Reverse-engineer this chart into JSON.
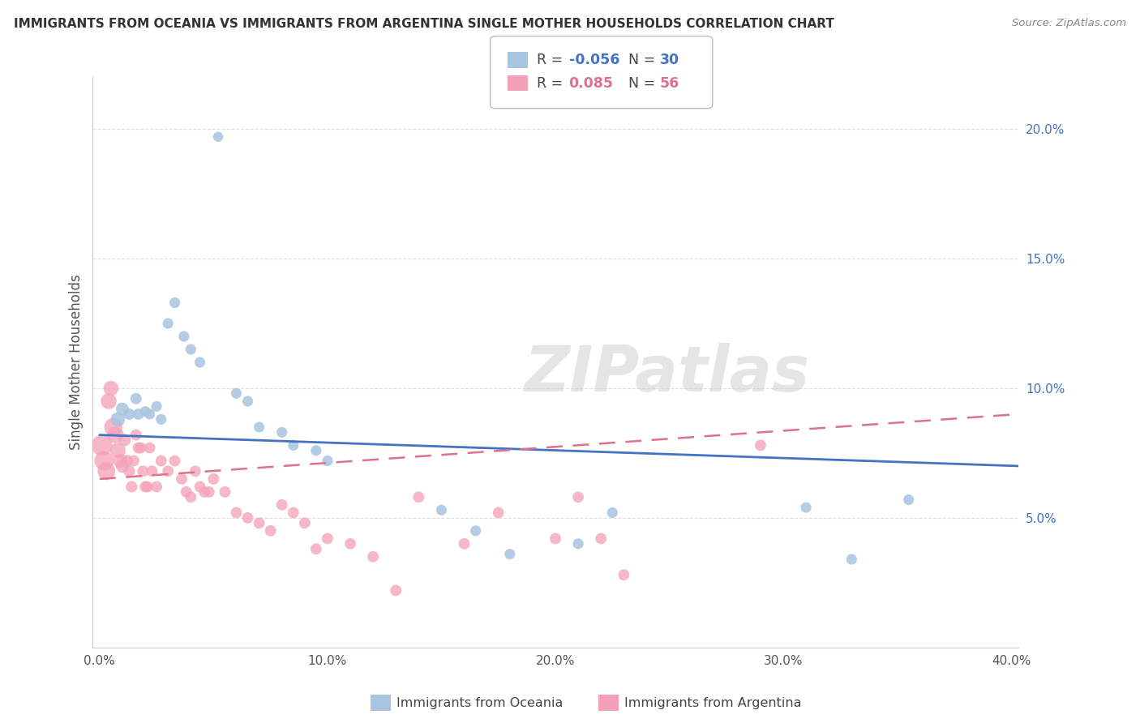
{
  "title": "IMMIGRANTS FROM OCEANIA VS IMMIGRANTS FROM ARGENTINA SINGLE MOTHER HOUSEHOLDS CORRELATION CHART",
  "source": "Source: ZipAtlas.com",
  "ylabel": "Single Mother Households",
  "xlim": [
    -0.003,
    0.403
  ],
  "ylim": [
    0.0,
    0.22
  ],
  "xticks": [
    0.0,
    0.1,
    0.2,
    0.3,
    0.4
  ],
  "xtick_labels": [
    "0.0%",
    "10.0%",
    "20.0%",
    "30.0%",
    "40.0%"
  ],
  "yticks_right": [
    0.05,
    0.1,
    0.15,
    0.2
  ],
  "ytick_labels_right": [
    "5.0%",
    "10.0%",
    "15.0%",
    "20.0%"
  ],
  "color_oceania": "#a8c4e0",
  "color_argentina": "#f4a0b8",
  "color_trend_oceania": "#4472c4",
  "color_trend_argentina": "#e07090",
  "background_color": "#ffffff",
  "grid_color": "#e0e0e0",
  "oceania_x": [
    0.052,
    0.008,
    0.01,
    0.013,
    0.016,
    0.017,
    0.02,
    0.022,
    0.025,
    0.027,
    0.03,
    0.033,
    0.037,
    0.04,
    0.044,
    0.06,
    0.065,
    0.07,
    0.08,
    0.085,
    0.095,
    0.1,
    0.15,
    0.165,
    0.18,
    0.21,
    0.225,
    0.31,
    0.33,
    0.355
  ],
  "oceania_y": [
    0.197,
    0.088,
    0.092,
    0.09,
    0.096,
    0.09,
    0.091,
    0.09,
    0.093,
    0.088,
    0.125,
    0.133,
    0.12,
    0.115,
    0.11,
    0.098,
    0.095,
    0.085,
    0.083,
    0.078,
    0.076,
    0.072,
    0.053,
    0.045,
    0.036,
    0.04,
    0.052,
    0.054,
    0.034,
    0.057
  ],
  "oceania_sizes": [
    80,
    160,
    130,
    100,
    100,
    100,
    90,
    90,
    90,
    90,
    90,
    90,
    90,
    90,
    90,
    90,
    90,
    90,
    90,
    90,
    90,
    90,
    90,
    90,
    90,
    90,
    90,
    90,
    90,
    90
  ],
  "argentina_x": [
    0.001,
    0.002,
    0.003,
    0.004,
    0.005,
    0.006,
    0.007,
    0.008,
    0.009,
    0.01,
    0.011,
    0.012,
    0.013,
    0.014,
    0.015,
    0.016,
    0.017,
    0.018,
    0.019,
    0.02,
    0.021,
    0.022,
    0.023,
    0.025,
    0.027,
    0.03,
    0.033,
    0.036,
    0.038,
    0.04,
    0.042,
    0.044,
    0.046,
    0.048,
    0.05,
    0.055,
    0.06,
    0.065,
    0.07,
    0.075,
    0.08,
    0.085,
    0.09,
    0.095,
    0.1,
    0.11,
    0.12,
    0.13,
    0.14,
    0.16,
    0.175,
    0.2,
    0.21,
    0.22,
    0.23,
    0.29
  ],
  "argentina_y": [
    0.078,
    0.072,
    0.068,
    0.095,
    0.1,
    0.085,
    0.082,
    0.076,
    0.072,
    0.07,
    0.08,
    0.072,
    0.068,
    0.062,
    0.072,
    0.082,
    0.077,
    0.077,
    0.068,
    0.062,
    0.062,
    0.077,
    0.068,
    0.062,
    0.072,
    0.068,
    0.072,
    0.065,
    0.06,
    0.058,
    0.068,
    0.062,
    0.06,
    0.06,
    0.065,
    0.06,
    0.052,
    0.05,
    0.048,
    0.045,
    0.055,
    0.052,
    0.048,
    0.038,
    0.042,
    0.04,
    0.035,
    0.022,
    0.058,
    0.04,
    0.052,
    0.042,
    0.058,
    0.042,
    0.028,
    0.078
  ],
  "argentina_sizes": [
    350,
    300,
    250,
    200,
    180,
    260,
    210,
    190,
    160,
    140,
    120,
    115,
    110,
    105,
    100,
    100,
    100,
    100,
    100,
    100,
    100,
    100,
    100,
    100,
    100,
    100,
    100,
    100,
    100,
    100,
    100,
    100,
    100,
    100,
    100,
    100,
    100,
    100,
    100,
    100,
    100,
    100,
    100,
    100,
    100,
    100,
    100,
    100,
    100,
    100,
    100,
    100,
    100,
    100,
    100,
    100
  ],
  "trend_oce_x0": 0.0,
  "trend_oce_x1": 0.403,
  "trend_oce_y0": 0.082,
  "trend_oce_y1": 0.07,
  "trend_arg_x0": 0.0,
  "trend_arg_x1": 0.403,
  "trend_arg_y0": 0.065,
  "trend_arg_y1": 0.09
}
